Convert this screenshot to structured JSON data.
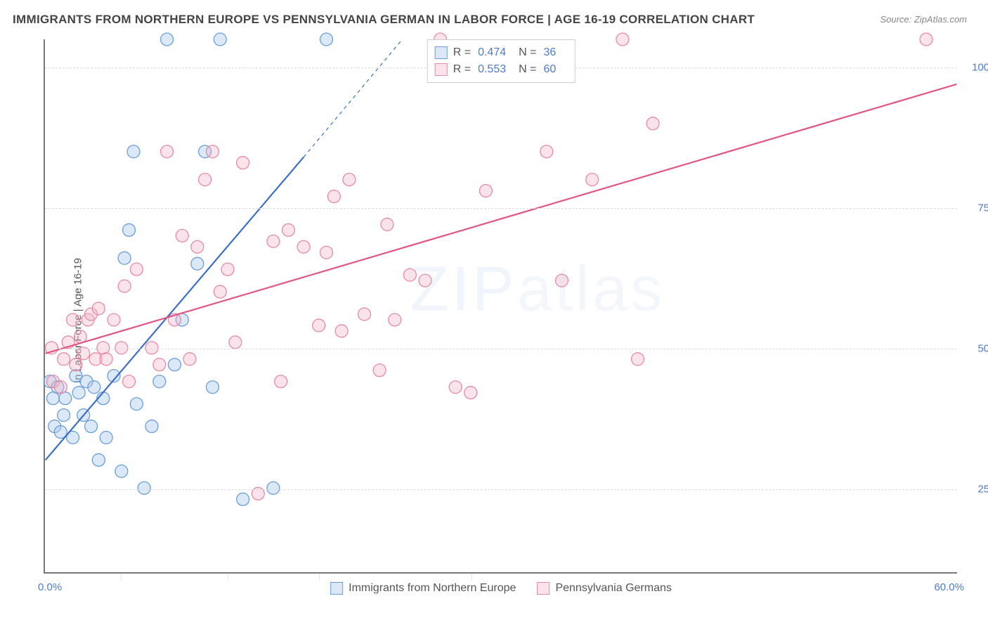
{
  "title": "IMMIGRANTS FROM NORTHERN EUROPE VS PENNSYLVANIA GERMAN IN LABOR FORCE | AGE 16-19 CORRELATION CHART",
  "source": "Source: ZipAtlas.com",
  "ylabel": "In Labor Force | Age 16-19",
  "watermark_bold": "ZIP",
  "watermark_thin": "atlas",
  "chart": {
    "type": "scatter",
    "background_color": "#ffffff",
    "grid_color": "#dddddd",
    "axis_color": "#777777",
    "tick_label_color": "#4a7bd0",
    "xlim": [
      0,
      60
    ],
    "ylim": [
      10,
      105
    ],
    "xticks": [
      0,
      60
    ],
    "xtick_labels": [
      "0.0%",
      "60.0%"
    ],
    "yticks": [
      25,
      50,
      75,
      100
    ],
    "ytick_labels": [
      "25.0%",
      "50.0%",
      "75.0%",
      "100.0%"
    ],
    "vgrid": [
      5,
      12,
      18,
      28
    ],
    "marker_radius": 9,
    "marker_stroke_width": 1.3,
    "line_width": 2.2,
    "series": [
      {
        "key": "blue",
        "label": "Immigrants from Northern Europe",
        "fill": "#aecbee70",
        "stroke": "#6a9ed8",
        "line_color": "#3a6fc4",
        "R": "0.474",
        "N": "36",
        "trend": {
          "x1": 0,
          "y1": 30,
          "x2": 17,
          "y2": 84,
          "ext_x2": 23.5,
          "ext_y2": 105
        },
        "points": [
          [
            0.3,
            44
          ],
          [
            0.5,
            41
          ],
          [
            0.6,
            36
          ],
          [
            0.8,
            43
          ],
          [
            1.2,
            38
          ],
          [
            1,
            35
          ],
          [
            1.3,
            41
          ],
          [
            1.8,
            34
          ],
          [
            2,
            45
          ],
          [
            2.2,
            42
          ],
          [
            2.5,
            38
          ],
          [
            2.7,
            44
          ],
          [
            3,
            36
          ],
          [
            3.2,
            43
          ],
          [
            3.5,
            30
          ],
          [
            3.8,
            41
          ],
          [
            4,
            34
          ],
          [
            4.5,
            45
          ],
          [
            5,
            28
          ],
          [
            5.2,
            66
          ],
          [
            5.5,
            71
          ],
          [
            5.8,
            85
          ],
          [
            6,
            40
          ],
          [
            6.5,
            25
          ],
          [
            7,
            36
          ],
          [
            7.5,
            44
          ],
          [
            8,
            105
          ],
          [
            8.5,
            47
          ],
          [
            9,
            55
          ],
          [
            10,
            65
          ],
          [
            10.5,
            85
          ],
          [
            11,
            43
          ],
          [
            11.5,
            105
          ],
          [
            13,
            23
          ],
          [
            15,
            25
          ],
          [
            18.5,
            105
          ]
        ]
      },
      {
        "key": "pink",
        "label": "Pennsylvania Germans",
        "fill": "#f3b5c660",
        "stroke": "#e88aa3",
        "line_color": "#e25583",
        "R": "0.553",
        "N": "60",
        "trend": {
          "x1": 0,
          "y1": 49,
          "x2": 60,
          "y2": 97
        },
        "points": [
          [
            0.4,
            50
          ],
          [
            0.5,
            44
          ],
          [
            1,
            43
          ],
          [
            1.2,
            48
          ],
          [
            1.5,
            51
          ],
          [
            1.8,
            55
          ],
          [
            2,
            47
          ],
          [
            2.3,
            52
          ],
          [
            2.5,
            49
          ],
          [
            2.8,
            55
          ],
          [
            3,
            56
          ],
          [
            3.3,
            48
          ],
          [
            3.5,
            57
          ],
          [
            3.8,
            50
          ],
          [
            4,
            48
          ],
          [
            4.5,
            55
          ],
          [
            5,
            50
          ],
          [
            5.2,
            61
          ],
          [
            5.5,
            44
          ],
          [
            6,
            64
          ],
          [
            7,
            50
          ],
          [
            7.5,
            47
          ],
          [
            8,
            85
          ],
          [
            8.5,
            55
          ],
          [
            9,
            70
          ],
          [
            9.5,
            48
          ],
          [
            10,
            68
          ],
          [
            10.5,
            80
          ],
          [
            11,
            85
          ],
          [
            11.5,
            60
          ],
          [
            12,
            64
          ],
          [
            12.5,
            51
          ],
          [
            13,
            83
          ],
          [
            14,
            24
          ],
          [
            15,
            69
          ],
          [
            15.5,
            44
          ],
          [
            16,
            71
          ],
          [
            17,
            68
          ],
          [
            18,
            54
          ],
          [
            18.5,
            67
          ],
          [
            19,
            77
          ],
          [
            19.5,
            53
          ],
          [
            20,
            80
          ],
          [
            21,
            56
          ],
          [
            22,
            46
          ],
          [
            22.5,
            72
          ],
          [
            23,
            55
          ],
          [
            24,
            63
          ],
          [
            25,
            62
          ],
          [
            26,
            105
          ],
          [
            27,
            43
          ],
          [
            28,
            42
          ],
          [
            29,
            78
          ],
          [
            33,
            85
          ],
          [
            34,
            62
          ],
          [
            36,
            80
          ],
          [
            38,
            105
          ],
          [
            39,
            48
          ],
          [
            40,
            90
          ],
          [
            58,
            105
          ]
        ]
      }
    ],
    "stat_legend": {
      "R_label": "R =",
      "N_label": "N ="
    }
  }
}
